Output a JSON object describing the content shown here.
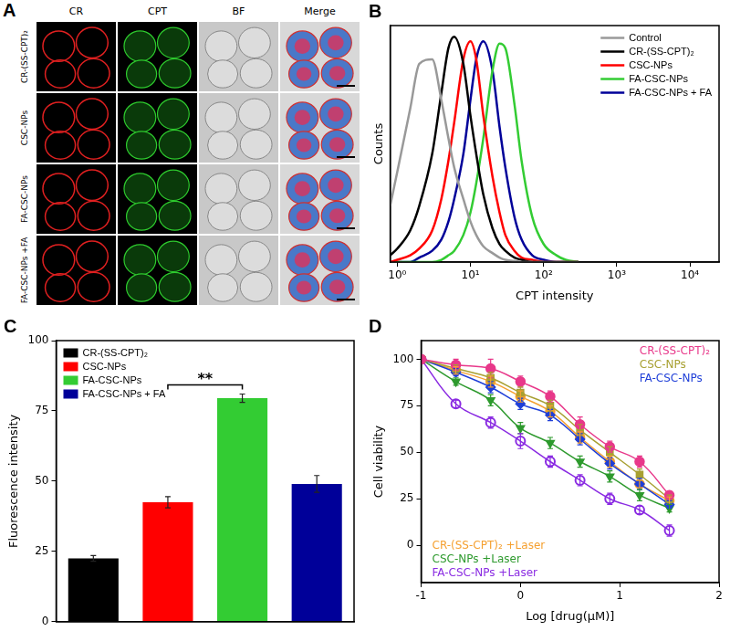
{
  "panel_a": {
    "title": "A",
    "columns": [
      "CR",
      "CPT",
      "BF",
      "Merge"
    ],
    "rows": [
      "CR-(SS-CPT)₂",
      "CSC-NPs",
      "FA-CSC-NPs",
      "FA-CSC-NPs +FA"
    ]
  },
  "chart_data": [
    {
      "title": "B",
      "type": "line",
      "x_label": "CPT intensity",
      "y_label": "Counts",
      "log": "x",
      "xlim": [
        0.8,
        25000
      ],
      "xticks": [
        {
          "value": 1,
          "label": "10⁰"
        },
        {
          "value": 10,
          "label": "10¹"
        },
        {
          "value": 100,
          "label": "10²"
        },
        {
          "value": 1000,
          "label": "10³"
        },
        {
          "value": 10000,
          "label": "10⁴"
        }
      ],
      "ylim": [
        0,
        105
      ],
      "tick_labels": "x",
      "legend": "upper right",
      "x": [
        0.8,
        1,
        1.5,
        2,
        3,
        4,
        5,
        6,
        8,
        10,
        12,
        15,
        20,
        25,
        30,
        40,
        50,
        70,
        100,
        150,
        200,
        300
      ],
      "series": [
        {
          "name": "Control",
          "color": "#999999",
          "values": [
            25,
            40,
            68,
            88,
            90,
            72,
            55,
            42,
            28,
            18,
            12,
            7,
            4,
            2,
            1,
            0.5,
            0,
            0,
            0,
            0,
            0,
            0
          ]
        },
        {
          "name": "CR-(SS-CPT)₂",
          "color": "#000000",
          "values": [
            3,
            6,
            14,
            25,
            48,
            75,
            95,
            100,
            88,
            65,
            48,
            30,
            15,
            8,
            5,
            2,
            1,
            0,
            0,
            0,
            0,
            0
          ]
        },
        {
          "name": "CSC-NPs",
          "color": "#ff0000",
          "values": [
            0,
            1,
            3,
            6,
            14,
            28,
            45,
            62,
            90,
            98,
            90,
            65,
            38,
            22,
            12,
            5,
            2,
            1,
            0,
            0,
            0,
            0
          ]
        },
        {
          "name": "FA-CSC-NPs",
          "color": "#33cc33",
          "values": [
            0,
            0,
            0,
            0,
            0,
            1,
            3,
            5,
            12,
            22,
            35,
            55,
            85,
            97,
            95,
            70,
            45,
            20,
            8,
            3,
            1,
            0
          ]
        },
        {
          "name": "FA-CSC-NPs + FA",
          "color": "#000099",
          "values": [
            0,
            0,
            0,
            2,
            5,
            10,
            18,
            28,
            48,
            72,
            90,
            98,
            85,
            60,
            42,
            20,
            10,
            3,
            1,
            0,
            0,
            0
          ]
        }
      ]
    },
    {
      "title": "C",
      "type": "bar",
      "y_label": "Fluorescence intensity",
      "categories": [
        "CR-(SS-CPT)₂",
        "CSC-NPs",
        "FA-CSC-NPs",
        "FA-CSC-NPs + FA"
      ],
      "values": [
        22.5,
        42.5,
        79.5,
        49
      ],
      "errors": [
        1,
        2,
        1.5,
        3
      ],
      "colors": [
        "#000000",
        "#ff0000",
        "#33cc33",
        "#000099"
      ],
      "ylim": [
        0,
        100
      ],
      "yticks": [
        0,
        25,
        50,
        75,
        100
      ],
      "tick_labels": "y",
      "legend": "upper left",
      "annotations": [
        {
          "text": "**",
          "between": [
            "CSC-NPs",
            "FA-CSC-NPs"
          ]
        }
      ]
    },
    {
      "title": "D",
      "type": "line",
      "x_label": "Log [drug(μM)]",
      "y_label": "Cell viability",
      "xlim": [
        -1,
        2
      ],
      "xticks": [
        -1,
        0,
        1,
        2
      ],
      "ylim": [
        -20,
        110
      ],
      "yticks": [
        0,
        25,
        50,
        75,
        100
      ],
      "x": [
        -1,
        -0.65,
        -0.3,
        0,
        0.3,
        0.6,
        0.9,
        1.2,
        1.5
      ],
      "series": [
        {
          "name": "CR-(SS-CPT)₂",
          "color": "#e8388a",
          "marker": "circle",
          "values": [
            100,
            97,
            95,
            88,
            80,
            65,
            53,
            45,
            27
          ],
          "errors": [
            0,
            3,
            5,
            3,
            3,
            4,
            3,
            3,
            2
          ]
        },
        {
          "name": "CSC-NPs",
          "color": "#a8a032",
          "marker": "square",
          "values": [
            100,
            95,
            90,
            82,
            75,
            62,
            50,
            38,
            25
          ],
          "errors": [
            0,
            2,
            3,
            3,
            3,
            3,
            3,
            3,
            2
          ]
        },
        {
          "name": "FA-CSC-NPs",
          "color": "#1f3fd8",
          "marker": "diamond",
          "values": [
            100,
            93,
            85,
            76,
            70,
            57,
            44,
            33,
            22
          ],
          "errors": [
            0,
            2,
            3,
            3,
            3,
            3,
            3,
            3,
            2
          ]
        },
        {
          "name": "CR-(SS-CPT)₂ +Laser",
          "color": "#f5a030",
          "marker": "circle",
          "values": [
            100,
            94,
            88,
            80,
            72,
            58,
            45,
            33,
            24
          ],
          "errors": [
            0,
            2,
            3,
            3,
            3,
            3,
            3,
            2,
            2
          ]
        },
        {
          "name": "CSC-NPs +Laser",
          "color": "#2e9a2e",
          "marker": "triangle_down",
          "values": [
            100,
            88,
            78,
            63,
            55,
            45,
            37,
            27,
            20
          ],
          "errors": [
            0,
            2,
            3,
            3,
            3,
            3,
            3,
            3,
            2
          ]
        },
        {
          "name": "FA-CSC-NPs +Laser",
          "color": "#8a2be2",
          "marker": "circle_open",
          "values": [
            100,
            76,
            66,
            56,
            45,
            35,
            25,
            19,
            8
          ],
          "errors": [
            0,
            2,
            3,
            4,
            3,
            3,
            3,
            2,
            3
          ]
        }
      ]
    }
  ]
}
